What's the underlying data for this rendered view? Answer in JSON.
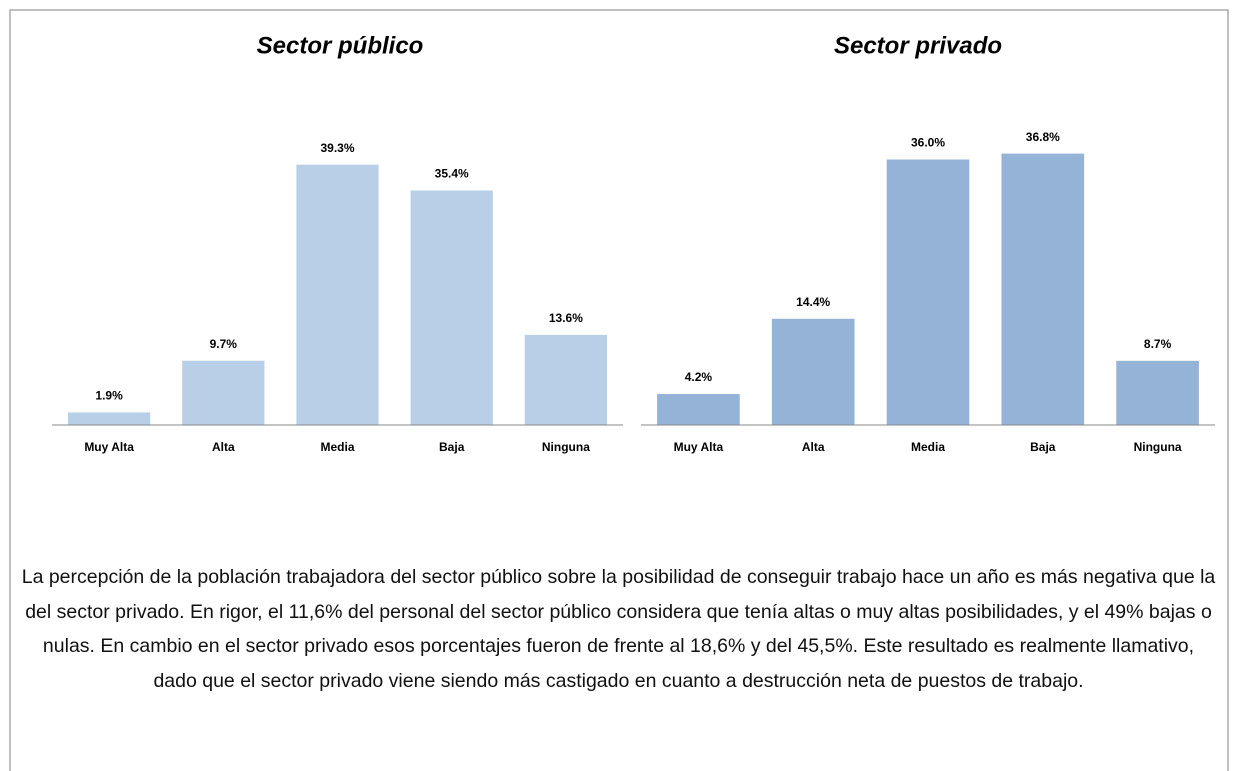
{
  "chart_data": [
    {
      "type": "bar",
      "title": "Sector público",
      "categories": [
        "Muy Alta",
        "Alta",
        "Media",
        "Baja",
        "Ninguna"
      ],
      "values": [
        1.9,
        9.7,
        39.3,
        35.4,
        13.6
      ],
      "value_labels": [
        "1.9%",
        "9.7%",
        "39.3%",
        "35.4%",
        "13.6%"
      ],
      "color": "#b9cfe7",
      "ylim": [
        0,
        40
      ]
    },
    {
      "type": "bar",
      "title": "Sector privado",
      "categories": [
        "Muy Alta",
        "Alta",
        "Media",
        "Baja",
        "Ninguna"
      ],
      "values": [
        4.2,
        14.4,
        36.0,
        36.8,
        8.7
      ],
      "value_labels": [
        "4.2%",
        "14.4%",
        "36.0%",
        "36.8%",
        "8.7%"
      ],
      "color": "#95b3d7",
      "ylim": [
        0,
        40
      ]
    }
  ],
  "caption": "La percepción de la población trabajadora del sector público sobre la posibilidad de conseguir trabajo hace un año es más negativa que la del sector privado. En rigor, el 11,6% del personal del sector público considera que tenía altas o muy altas posibilidades, y el 49% bajas o nulas. En cambio en el sector privado esos porcentajes fueron de frente al 18,6% y del 45,5%. Este resultado es realmente llamativo, dado que el sector privado viene siendo más castigado en cuanto a destrucción neta de puestos de trabajo."
}
